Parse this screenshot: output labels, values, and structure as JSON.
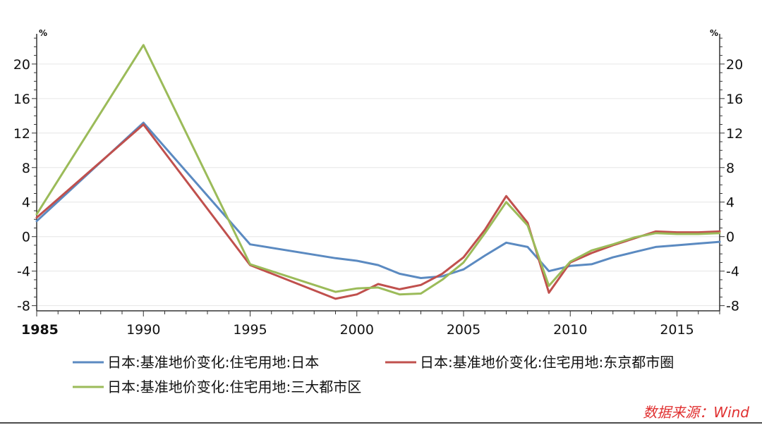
{
  "chart_data": {
    "type": "line",
    "y_unit_left": "%",
    "y_unit_right": "%",
    "x_ticks": [
      1985,
      1990,
      1995,
      2000,
      2005,
      2010,
      2015
    ],
    "y_ticks": [
      -8,
      -4,
      0,
      4,
      8,
      12,
      16,
      20
    ],
    "xlim": [
      1985,
      2017
    ],
    "ylim": [
      -8.6,
      23.5
    ],
    "grid": true,
    "legend_position": "bottom",
    "series": [
      {
        "name": "日本:基准地价变化:住宅用地:日本",
        "color": "#5b8ac1",
        "x": [
          1985,
          1990,
          1995,
          1999,
          2000,
          2001,
          2002,
          2003,
          2004,
          2005,
          2006,
          2007,
          2008,
          2009,
          2010,
          2011,
          2012,
          2013,
          2014,
          2015,
          2016,
          2017
        ],
        "values": [
          1.8,
          13.2,
          -0.9,
          -2.5,
          -2.8,
          -3.3,
          -4.3,
          -4.8,
          -4.6,
          -3.8,
          -2.2,
          -0.7,
          -1.2,
          -4.0,
          -3.4,
          -3.2,
          -2.4,
          -1.8,
          -1.2,
          -1.0,
          -0.8,
          -0.6
        ]
      },
      {
        "name": "日本:基准地价变化:住宅用地:东京都市圈",
        "color": "#c0504d",
        "x": [
          1985,
          1990,
          1995,
          1999,
          2000,
          2001,
          2002,
          2003,
          2004,
          2005,
          2006,
          2007,
          2008,
          2009,
          2010,
          2011,
          2012,
          2013,
          2014,
          2015,
          2016,
          2017
        ],
        "values": [
          2.2,
          13.0,
          -3.3,
          -7.2,
          -6.7,
          -5.5,
          -6.1,
          -5.6,
          -4.3,
          -2.4,
          0.8,
          4.7,
          1.6,
          -6.5,
          -3.0,
          -1.9,
          -1.0,
          -0.2,
          0.6,
          0.5,
          0.5,
          0.6
        ]
      },
      {
        "name": "日本:基准地价变化:住宅用地:三大都市区",
        "color": "#9bbb59",
        "x": [
          1985,
          1990,
          1995,
          1999,
          2000,
          2001,
          2002,
          2003,
          2004,
          2005,
          2006,
          2007,
          2008,
          2009,
          2010,
          2011,
          2012,
          2013,
          2014,
          2015,
          2016,
          2017
        ],
        "values": [
          2.6,
          22.2,
          -3.2,
          -6.4,
          -6.0,
          -5.9,
          -6.7,
          -6.6,
          -5.0,
          -3.0,
          0.4,
          4.0,
          1.3,
          -5.7,
          -2.9,
          -1.6,
          -0.9,
          -0.1,
          0.4,
          0.3,
          0.3,
          0.4
        ]
      }
    ]
  },
  "source": "数据来源：Wind"
}
